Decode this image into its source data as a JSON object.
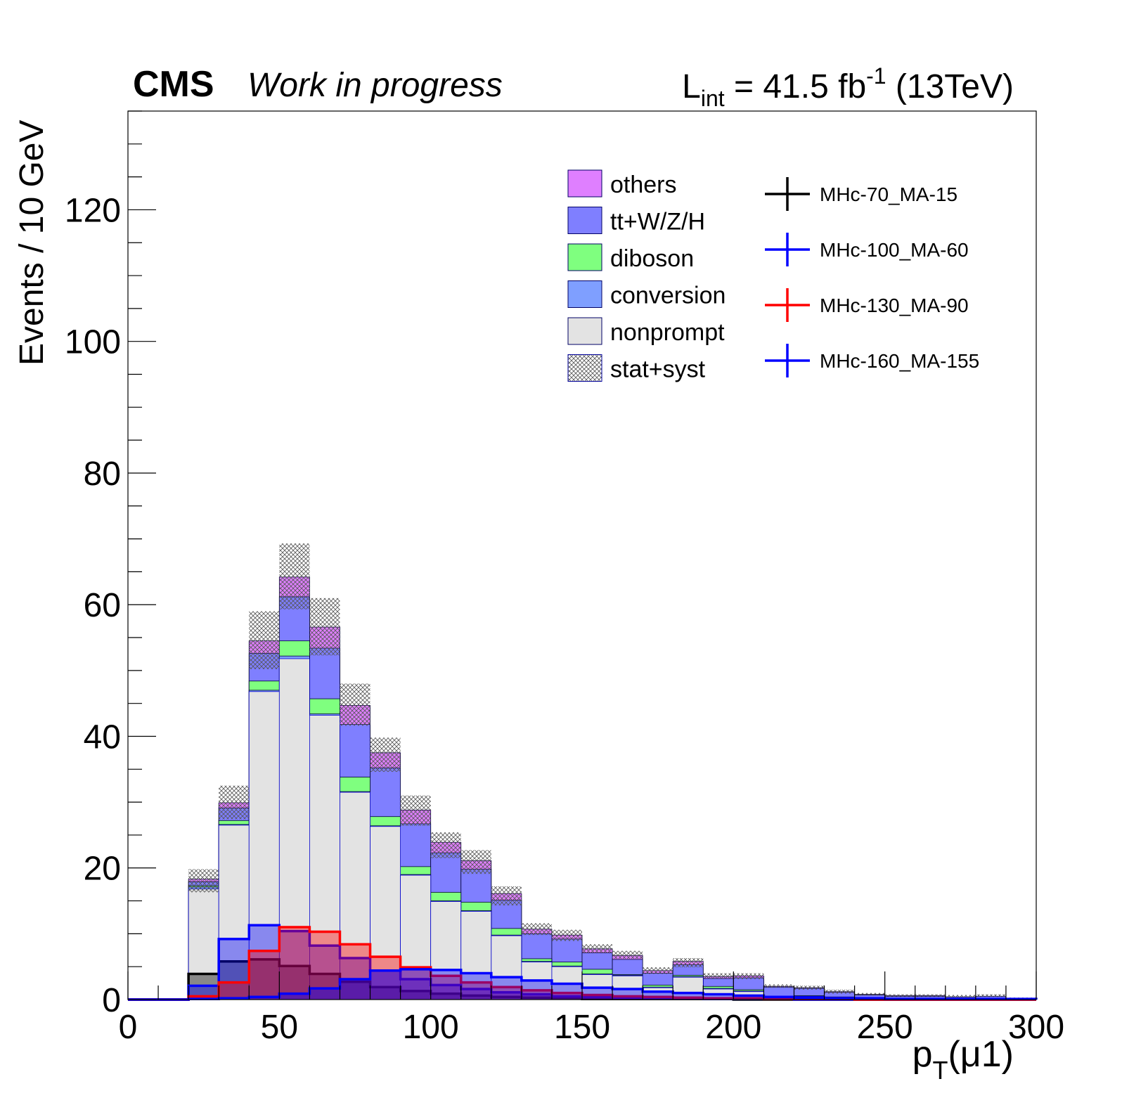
{
  "header": {
    "cms": "CMS",
    "status": "Work in progress",
    "lumi_prefix": "L",
    "lumi_sub": "int",
    "lumi_value": " = 41.5 fb",
    "lumi_sup": "-1",
    "lumi_energy": " (13TeV)"
  },
  "axes": {
    "x_main": "p",
    "x_sub": "T",
    "x_paren": "(μ1)",
    "y_label": "Events / 10 GeV"
  },
  "chart_data": {
    "type": "histogram",
    "bin_edges": [
      0,
      10,
      20,
      30,
      40,
      50,
      60,
      70,
      80,
      90,
      100,
      110,
      120,
      130,
      140,
      150,
      160,
      170,
      180,
      190,
      200,
      210,
      220,
      230,
      240,
      250,
      260,
      270,
      280,
      290,
      300
    ],
    "xlim": [
      0,
      300
    ],
    "ylim": [
      0,
      135
    ],
    "x_ticks": [
      0,
      50,
      100,
      150,
      200,
      250,
      300
    ],
    "y_ticks": [
      0,
      20,
      40,
      60,
      80,
      100,
      120
    ],
    "stacked_backgrounds": [
      {
        "name": "nonprompt",
        "color": "#e3e3e3",
        "values": [
          0,
          0,
          16.8,
          26.5,
          46.8,
          51.8,
          43.2,
          31.5,
          26.3,
          18.9,
          14.9,
          13.4,
          9.7,
          5.7,
          5.0,
          3.8,
          3.6,
          1.8,
          3.4,
          1.6,
          1.2,
          0.4,
          0.5,
          0.3,
          0.2,
          0.2,
          0.2,
          0.1,
          0.1,
          0.1
        ]
      },
      {
        "name": "conversion",
        "color": "#7f9fff",
        "values": [
          0,
          0,
          0.3,
          0.1,
          0.2,
          0.4,
          0.2,
          0.1,
          0.1,
          0.1,
          0.1,
          0.1,
          0.1,
          0.1,
          0.1,
          0.1,
          0.1,
          0.1,
          0.1,
          0.1,
          0.1,
          0,
          0,
          0,
          0,
          0,
          0,
          0,
          0,
          0
        ]
      },
      {
        "name": "diboson",
        "color": "#7fff7f",
        "values": [
          0,
          0,
          0.2,
          0.6,
          1.4,
          2.3,
          2.3,
          2.2,
          1.4,
          1.2,
          1.3,
          1.3,
          1.0,
          0.4,
          0.6,
          0.7,
          0.1,
          0.3,
          0.2,
          0.3,
          0.2,
          0.1,
          0.1,
          0.1,
          0,
          0,
          0,
          0,
          0,
          0
        ]
      },
      {
        "name": "tt+W/Z/H",
        "color": "#7f7fff",
        "values": [
          0,
          0,
          0.6,
          1.9,
          4.2,
          6.7,
          7.7,
          8.0,
          7.4,
          6.5,
          6.0,
          5.0,
          4.3,
          3.8,
          3.5,
          2.5,
          2.3,
          1.8,
          1.6,
          1.2,
          1.8,
          1.4,
          1.1,
          0.7,
          0.5,
          0.3,
          0.3,
          0.3,
          0.4,
          0.1
        ]
      },
      {
        "name": "others",
        "color": "#df7fff",
        "values": [
          0,
          0,
          0.4,
          0.8,
          1.9,
          3.0,
          3.2,
          2.9,
          2.3,
          2.1,
          1.6,
          1.3,
          1.0,
          0.7,
          0.6,
          0.6,
          0.6,
          0.4,
          0.5,
          0.3,
          0.3,
          0.1,
          0.1,
          0.1,
          0.1,
          0.1,
          0.1,
          0,
          0,
          0
        ]
      }
    ],
    "uncertainty": {
      "name": "stat+syst",
      "up": [
        0,
        0,
        19.8,
        32.5,
        59.0,
        69.3,
        61.0,
        48.0,
        39.8,
        31.0,
        25.4,
        22.7,
        17.2,
        11.6,
        10.6,
        8.4,
        7.4,
        4.9,
        6.3,
        4.0,
        4.0,
        2.3,
        2.1,
        1.5,
        1.0,
        0.8,
        0.8,
        0.7,
        0.8,
        0.3
      ],
      "down": [
        0,
        0,
        16.3,
        27.4,
        50.2,
        59.3,
        52.3,
        41.6,
        34.6,
        26.4,
        21.5,
        19.1,
        14.3,
        9.8,
        8.9,
        7.1,
        6.2,
        3.9,
        4.9,
        3.2,
        3.1,
        1.8,
        1.5,
        0.9,
        0.6,
        0.4,
        0.4,
        0.3,
        0.4,
        0.1
      ]
    },
    "signals": [
      {
        "name": "MHc-70_MA-15",
        "color": "#000000",
        "values": [
          0,
          0,
          3.9,
          5.8,
          6.1,
          5.1,
          3.9,
          2.7,
          1.9,
          1.3,
          0.9,
          0.6,
          0.4,
          0.3,
          0.2,
          0.1,
          0.1,
          0.1,
          0.1,
          0.1,
          0,
          0,
          0,
          0,
          0,
          0,
          0,
          0,
          0,
          0
        ]
      },
      {
        "name": "MHc-100_MA-60",
        "color": "#0000ff",
        "values": [
          0,
          0,
          2.1,
          9.2,
          11.3,
          10.4,
          8.2,
          6.3,
          4.4,
          3.1,
          2.2,
          1.6,
          1.1,
          0.8,
          0.5,
          0.4,
          0.3,
          0.2,
          0.2,
          0.1,
          0.1,
          0.1,
          0,
          0,
          0,
          0,
          0,
          0,
          0,
          0
        ]
      },
      {
        "name": "MHc-130_MA-90",
        "color": "#ff0000",
        "values": [
          0,
          0,
          0.5,
          2.6,
          7.4,
          11.0,
          10.3,
          8.4,
          6.5,
          4.9,
          3.6,
          2.6,
          1.9,
          1.4,
          1.0,
          0.7,
          0.5,
          0.4,
          0.3,
          0.2,
          0.2,
          0.1,
          0.1,
          0.1,
          0,
          0,
          0,
          0,
          0,
          0
        ]
      },
      {
        "name": "MHc-160_MA-155",
        "color": "#0000ff",
        "values": [
          0,
          0,
          0.1,
          0.2,
          0.4,
          0.9,
          1.7,
          3.1,
          4.4,
          4.6,
          4.5,
          4.0,
          3.4,
          2.9,
          2.4,
          1.8,
          1.6,
          1.2,
          1.0,
          0.8,
          0.6,
          0.4,
          0.3,
          0.2,
          0.2,
          0.1,
          0.1,
          0.1,
          0.1,
          0.1
        ]
      }
    ],
    "legend_position": "top-right",
    "grid": false
  }
}
